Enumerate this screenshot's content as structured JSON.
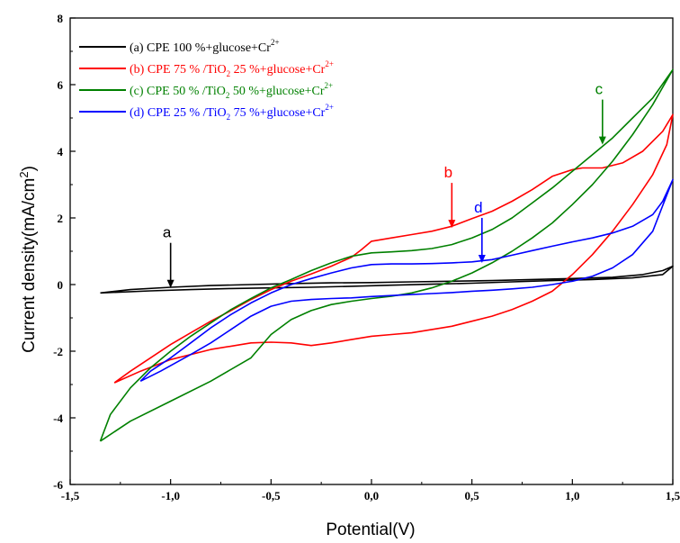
{
  "chart_data": {
    "type": "line",
    "title": "",
    "xlabel": "Potential(V)",
    "ylabel": "Current density(mA/cm²)",
    "xlim": [
      -1.5,
      1.5
    ],
    "ylim": [
      -6,
      8
    ],
    "x_ticks": [
      -1.5,
      -1.0,
      -0.5,
      0.0,
      0.5,
      1.0,
      1.5
    ],
    "x_tick_labels": [
      "-1,5",
      "-1,0",
      "-0,5",
      "0,0",
      "0,5",
      "1,0",
      "1,5"
    ],
    "y_ticks": [
      -6,
      -4,
      -2,
      0,
      2,
      4,
      6,
      8
    ],
    "y_tick_labels": [
      "-6",
      "-4",
      "-2",
      "0",
      "2",
      "4",
      "6",
      "8"
    ],
    "grid": false,
    "legend_position": "top-left",
    "series": [
      {
        "name": "(a) CPE 100 %+glucose+Cr",
        "superscript": "2+",
        "color": "#000000",
        "points": [
          [
            -1.35,
            -0.25
          ],
          [
            -1.2,
            -0.15
          ],
          [
            -1.0,
            -0.08
          ],
          [
            -0.8,
            -0.03
          ],
          [
            -0.6,
            0.0
          ],
          [
            -0.4,
            0.03
          ],
          [
            -0.2,
            0.05
          ],
          [
            0.0,
            0.06
          ],
          [
            0.2,
            0.08
          ],
          [
            0.4,
            0.1
          ],
          [
            0.6,
            0.12
          ],
          [
            0.8,
            0.15
          ],
          [
            1.0,
            0.18
          ],
          [
            1.2,
            0.22
          ],
          [
            1.35,
            0.3
          ],
          [
            1.45,
            0.42
          ],
          [
            1.5,
            0.55
          ],
          [
            1.45,
            0.3
          ],
          [
            1.3,
            0.2
          ],
          [
            1.1,
            0.15
          ],
          [
            0.9,
            0.12
          ],
          [
            0.7,
            0.08
          ],
          [
            0.5,
            0.04
          ],
          [
            0.3,
            0.01
          ],
          [
            0.1,
            -0.02
          ],
          [
            -0.1,
            -0.05
          ],
          [
            -0.3,
            -0.08
          ],
          [
            -0.5,
            -0.1
          ],
          [
            -0.7,
            -0.12
          ],
          [
            -0.9,
            -0.15
          ],
          [
            -1.1,
            -0.19
          ],
          [
            -1.35,
            -0.25
          ]
        ]
      },
      {
        "name": "(b) CPE 75 % /TiO",
        "name_suffix": " 25 %+glucose+Cr",
        "subscript": "2",
        "superscript": "2+",
        "color": "#ff0000",
        "annotation": "b",
        "annotation_point": [
          0.4,
          1.7
        ],
        "points": [
          [
            -1.28,
            -2.95
          ],
          [
            -1.15,
            -2.6
          ],
          [
            -1.0,
            -2.25
          ],
          [
            -0.8,
            -1.95
          ],
          [
            -0.6,
            -1.75
          ],
          [
            -0.5,
            -1.73
          ],
          [
            -0.4,
            -1.75
          ],
          [
            -0.3,
            -1.83
          ],
          [
            -0.2,
            -1.75
          ],
          [
            -0.1,
            -1.65
          ],
          [
            0.0,
            -1.55
          ],
          [
            0.1,
            -1.5
          ],
          [
            0.2,
            -1.45
          ],
          [
            0.3,
            -1.35
          ],
          [
            0.4,
            -1.25
          ],
          [
            0.5,
            -1.1
          ],
          [
            0.6,
            -0.95
          ],
          [
            0.7,
            -0.75
          ],
          [
            0.8,
            -0.5
          ],
          [
            0.9,
            -0.2
          ],
          [
            1.0,
            0.3
          ],
          [
            1.1,
            0.9
          ],
          [
            1.2,
            1.6
          ],
          [
            1.3,
            2.4
          ],
          [
            1.4,
            3.3
          ],
          [
            1.47,
            4.2
          ],
          [
            1.5,
            5.1
          ],
          [
            1.45,
            4.6
          ],
          [
            1.35,
            4.0
          ],
          [
            1.25,
            3.65
          ],
          [
            1.15,
            3.5
          ],
          [
            1.05,
            3.5
          ],
          [
            1.0,
            3.45
          ],
          [
            0.9,
            3.25
          ],
          [
            0.8,
            2.85
          ],
          [
            0.7,
            2.5
          ],
          [
            0.6,
            2.2
          ],
          [
            0.5,
            1.98
          ],
          [
            0.4,
            1.75
          ],
          [
            0.3,
            1.6
          ],
          [
            0.2,
            1.5
          ],
          [
            0.1,
            1.4
          ],
          [
            0.0,
            1.3
          ],
          [
            -0.05,
            1.05
          ],
          [
            -0.1,
            0.82
          ],
          [
            -0.2,
            0.55
          ],
          [
            -0.3,
            0.32
          ],
          [
            -0.4,
            0.1
          ],
          [
            -0.5,
            -0.15
          ],
          [
            -0.6,
            -0.45
          ],
          [
            -0.7,
            -0.78
          ],
          [
            -0.8,
            -1.1
          ],
          [
            -0.9,
            -1.45
          ],
          [
            -1.0,
            -1.8
          ],
          [
            -1.1,
            -2.2
          ],
          [
            -1.2,
            -2.6
          ],
          [
            -1.28,
            -2.95
          ]
        ]
      },
      {
        "name": "(c) CPE 50 % /TiO",
        "name_suffix": " 50 %+glucose+Cr",
        "subscript": "2",
        "superscript": "2+",
        "color": "#008000",
        "annotation": "c",
        "annotation_point": [
          1.15,
          4.2
        ],
        "points": [
          [
            -1.35,
            -4.7
          ],
          [
            -1.2,
            -4.1
          ],
          [
            -1.0,
            -3.5
          ],
          [
            -0.8,
            -2.9
          ],
          [
            -0.6,
            -2.2
          ],
          [
            -0.5,
            -1.5
          ],
          [
            -0.4,
            -1.05
          ],
          [
            -0.3,
            -0.78
          ],
          [
            -0.2,
            -0.6
          ],
          [
            -0.1,
            -0.5
          ],
          [
            0.0,
            -0.42
          ],
          [
            0.1,
            -0.35
          ],
          [
            0.2,
            -0.25
          ],
          [
            0.3,
            -0.1
          ],
          [
            0.4,
            0.1
          ],
          [
            0.5,
            0.35
          ],
          [
            0.6,
            0.65
          ],
          [
            0.7,
            1.0
          ],
          [
            0.8,
            1.4
          ],
          [
            0.9,
            1.85
          ],
          [
            1.0,
            2.4
          ],
          [
            1.1,
            3.0
          ],
          [
            1.2,
            3.7
          ],
          [
            1.3,
            4.5
          ],
          [
            1.4,
            5.4
          ],
          [
            1.5,
            6.45
          ],
          [
            1.4,
            5.6
          ],
          [
            1.3,
            5.0
          ],
          [
            1.2,
            4.4
          ],
          [
            1.1,
            3.9
          ],
          [
            1.0,
            3.4
          ],
          [
            0.9,
            2.9
          ],
          [
            0.8,
            2.45
          ],
          [
            0.7,
            2.0
          ],
          [
            0.6,
            1.65
          ],
          [
            0.5,
            1.4
          ],
          [
            0.4,
            1.2
          ],
          [
            0.3,
            1.08
          ],
          [
            0.2,
            1.02
          ],
          [
            0.1,
            0.98
          ],
          [
            0.0,
            0.95
          ],
          [
            -0.1,
            0.85
          ],
          [
            -0.2,
            0.65
          ],
          [
            -0.3,
            0.42
          ],
          [
            -0.4,
            0.15
          ],
          [
            -0.5,
            -0.1
          ],
          [
            -0.6,
            -0.42
          ],
          [
            -0.7,
            -0.75
          ],
          [
            -0.8,
            -1.15
          ],
          [
            -0.9,
            -1.55
          ],
          [
            -1.0,
            -2.0
          ],
          [
            -1.1,
            -2.5
          ],
          [
            -1.2,
            -3.1
          ],
          [
            -1.3,
            -3.9
          ],
          [
            -1.35,
            -4.7
          ]
        ]
      },
      {
        "name": "(d) CPE 25 % /TiO",
        "name_suffix": " 75 %+glucose+Cr",
        "subscript": "2",
        "superscript": "2+",
        "color": "#0000ff",
        "annotation": "d",
        "annotation_point": [
          0.55,
          0.65
        ],
        "points": [
          [
            -1.15,
            -2.9
          ],
          [
            -1.05,
            -2.6
          ],
          [
            -0.9,
            -2.1
          ],
          [
            -0.8,
            -1.75
          ],
          [
            -0.7,
            -1.35
          ],
          [
            -0.6,
            -0.95
          ],
          [
            -0.5,
            -0.65
          ],
          [
            -0.4,
            -0.5
          ],
          [
            -0.3,
            -0.45
          ],
          [
            -0.2,
            -0.42
          ],
          [
            -0.1,
            -0.4
          ],
          [
            0.0,
            -0.36
          ],
          [
            0.1,
            -0.33
          ],
          [
            0.2,
            -0.3
          ],
          [
            0.3,
            -0.27
          ],
          [
            0.4,
            -0.24
          ],
          [
            0.5,
            -0.2
          ],
          [
            0.6,
            -0.17
          ],
          [
            0.7,
            -0.13
          ],
          [
            0.8,
            -0.08
          ],
          [
            0.9,
            0.0
          ],
          [
            1.0,
            0.1
          ],
          [
            1.1,
            0.25
          ],
          [
            1.2,
            0.5
          ],
          [
            1.3,
            0.9
          ],
          [
            1.4,
            1.6
          ],
          [
            1.5,
            3.15
          ],
          [
            1.45,
            2.5
          ],
          [
            1.4,
            2.1
          ],
          [
            1.3,
            1.75
          ],
          [
            1.2,
            1.55
          ],
          [
            1.1,
            1.4
          ],
          [
            1.0,
            1.28
          ],
          [
            0.9,
            1.15
          ],
          [
            0.8,
            1.02
          ],
          [
            0.7,
            0.88
          ],
          [
            0.6,
            0.75
          ],
          [
            0.5,
            0.68
          ],
          [
            0.4,
            0.65
          ],
          [
            0.3,
            0.63
          ],
          [
            0.2,
            0.62
          ],
          [
            0.1,
            0.62
          ],
          [
            0.0,
            0.6
          ],
          [
            -0.1,
            0.5
          ],
          [
            -0.2,
            0.35
          ],
          [
            -0.3,
            0.18
          ],
          [
            -0.4,
            0.0
          ],
          [
            -0.5,
            -0.25
          ],
          [
            -0.6,
            -0.55
          ],
          [
            -0.7,
            -0.9
          ],
          [
            -0.8,
            -1.3
          ],
          [
            -0.9,
            -1.75
          ],
          [
            -1.0,
            -2.2
          ],
          [
            -1.1,
            -2.6
          ],
          [
            -1.15,
            -2.9
          ]
        ]
      }
    ],
    "annotations": [
      {
        "text": "a",
        "color": "#000000",
        "point": [
          -1.0,
          -0.1
        ]
      }
    ]
  }
}
